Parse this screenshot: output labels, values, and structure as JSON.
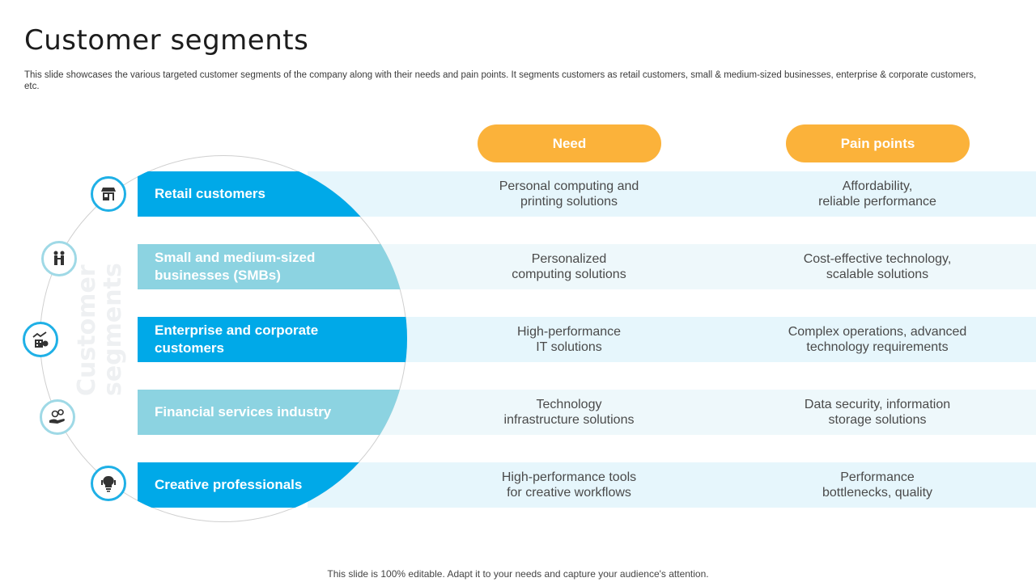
{
  "title": "Customer segments",
  "subtitle": "This slide showcases the various targeted customer segments of the company along with their needs and pain points. It segments customers as retail customers, small & medium-sized businesses, enterprise & corporate customers, etc.",
  "headers": {
    "need": "Need",
    "pain": "Pain points"
  },
  "vertical_label": "Customer\nsegments",
  "segments": [
    {
      "label": "Retail customers",
      "need": "Personal computing and\nprinting solutions",
      "pain": "Affordability,\nreliable performance",
      "icon": "store-icon"
    },
    {
      "label": "Small and medium-sized\nbusinesses (SMBs)",
      "need": "Personalized\ncomputing solutions",
      "pain": "Cost-effective technology,\nscalable solutions",
      "icon": "handshake-icon"
    },
    {
      "label": "Enterprise and corporate\ncustomers",
      "need": "High-performance\nIT solutions",
      "pain": "Complex operations, advanced\ntechnology requirements",
      "icon": "building-growth-icon"
    },
    {
      "label": "Financial services industry",
      "need": "Technology\ninfrastructure  solutions",
      "pain": "Data security, information\nstorage solutions",
      "icon": "money-hand-icon"
    },
    {
      "label": "Creative professionals",
      "need": "High-performance tools\nfor creative workflows",
      "pain": "Performance\nbottlenecks, quality",
      "icon": "lightbulb-icon"
    }
  ],
  "footer": "This slide is 100% editable. Adapt it to your needs and capture your audience's attention.",
  "colors": {
    "accent_orange": "#fbb23a",
    "blue_dark": "#00a9e8",
    "blue_light": "#8cd3e1",
    "band": "#e6f6fc"
  }
}
